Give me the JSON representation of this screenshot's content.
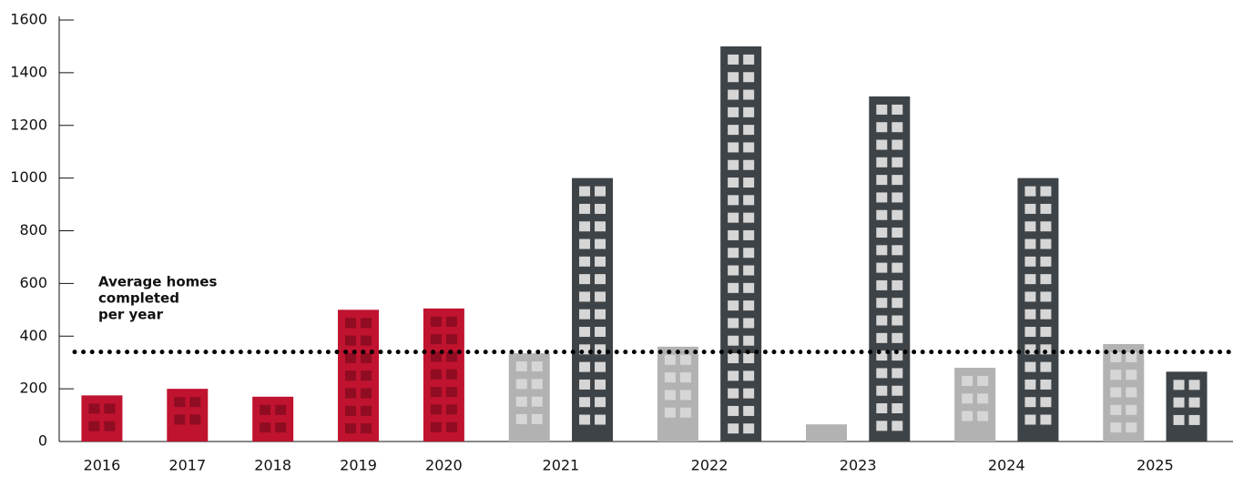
{
  "chart_data": {
    "type": "bar",
    "categories": [
      "2016",
      "2017",
      "2018",
      "2019",
      "2020",
      "2021",
      "2022",
      "2023",
      "2024",
      "2025"
    ],
    "series": [
      {
        "color": "#c0132f",
        "values": [
          175,
          200,
          170,
          500,
          505,
          null,
          null,
          null,
          null,
          null
        ]
      },
      {
        "color": "#b2b2b2",
        "values": [
          null,
          null,
          null,
          null,
          null,
          335,
          360,
          65,
          280,
          370
        ]
      },
      {
        "color": "#3e4347",
        "values": [
          null,
          null,
          null,
          null,
          null,
          1000,
          1500,
          1310,
          1000,
          265
        ]
      }
    ],
    "ylim": [
      0,
      1600
    ],
    "yticks": [
      0,
      200,
      400,
      600,
      800,
      1000,
      1200,
      1400,
      1600
    ],
    "average": 340,
    "annotation": [
      "Average homes",
      "completed",
      "per year"
    ]
  }
}
